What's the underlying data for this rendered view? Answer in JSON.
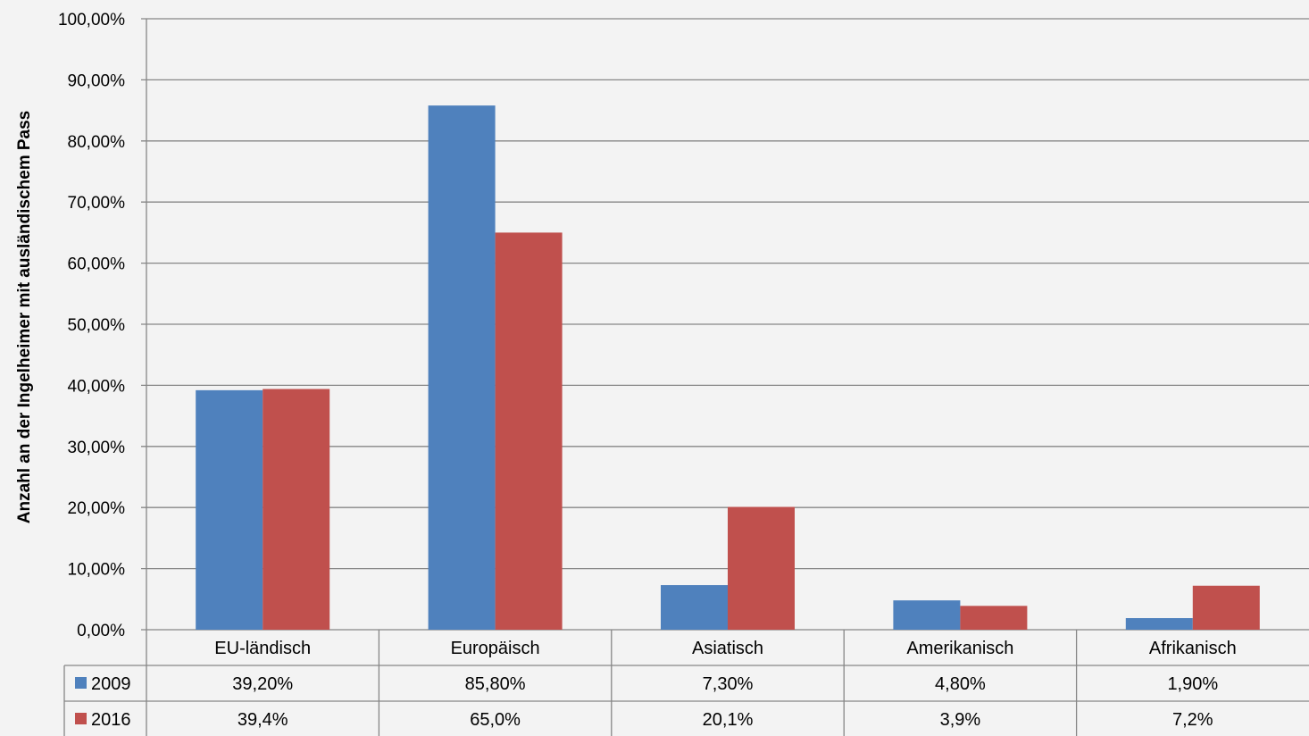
{
  "chart_data": {
    "type": "bar",
    "title": "",
    "xlabel": "",
    "ylabel": "Anzahl an der Ingelheimer mit ausländischem Pass",
    "ylim": [
      0,
      100
    ],
    "yticks": [
      "0,00%",
      "10,00%",
      "20,00%",
      "30,00%",
      "40,00%",
      "50,00%",
      "60,00%",
      "70,00%",
      "80,00%",
      "90,00%",
      "100,00%"
    ],
    "categories": [
      "EU-ländisch",
      "Europäisch",
      "Asiatisch",
      "Amerikanisch",
      "Afrikanisch"
    ],
    "grid": true,
    "legend": "data-table",
    "series": [
      {
        "name": "2009",
        "color": "#4f81bd",
        "values": [
          39.2,
          85.8,
          7.3,
          4.8,
          1.9
        ],
        "labels": [
          "39,20%",
          "85,80%",
          "7,30%",
          "4,80%",
          "1,90%"
        ]
      },
      {
        "name": "2016",
        "color": "#c0504d",
        "values": [
          39.4,
          65.0,
          20.1,
          3.9,
          7.2
        ],
        "labels": [
          "39,4%",
          "65,0%",
          "20,1%",
          "3,9%",
          "7,2%"
        ]
      }
    ]
  }
}
